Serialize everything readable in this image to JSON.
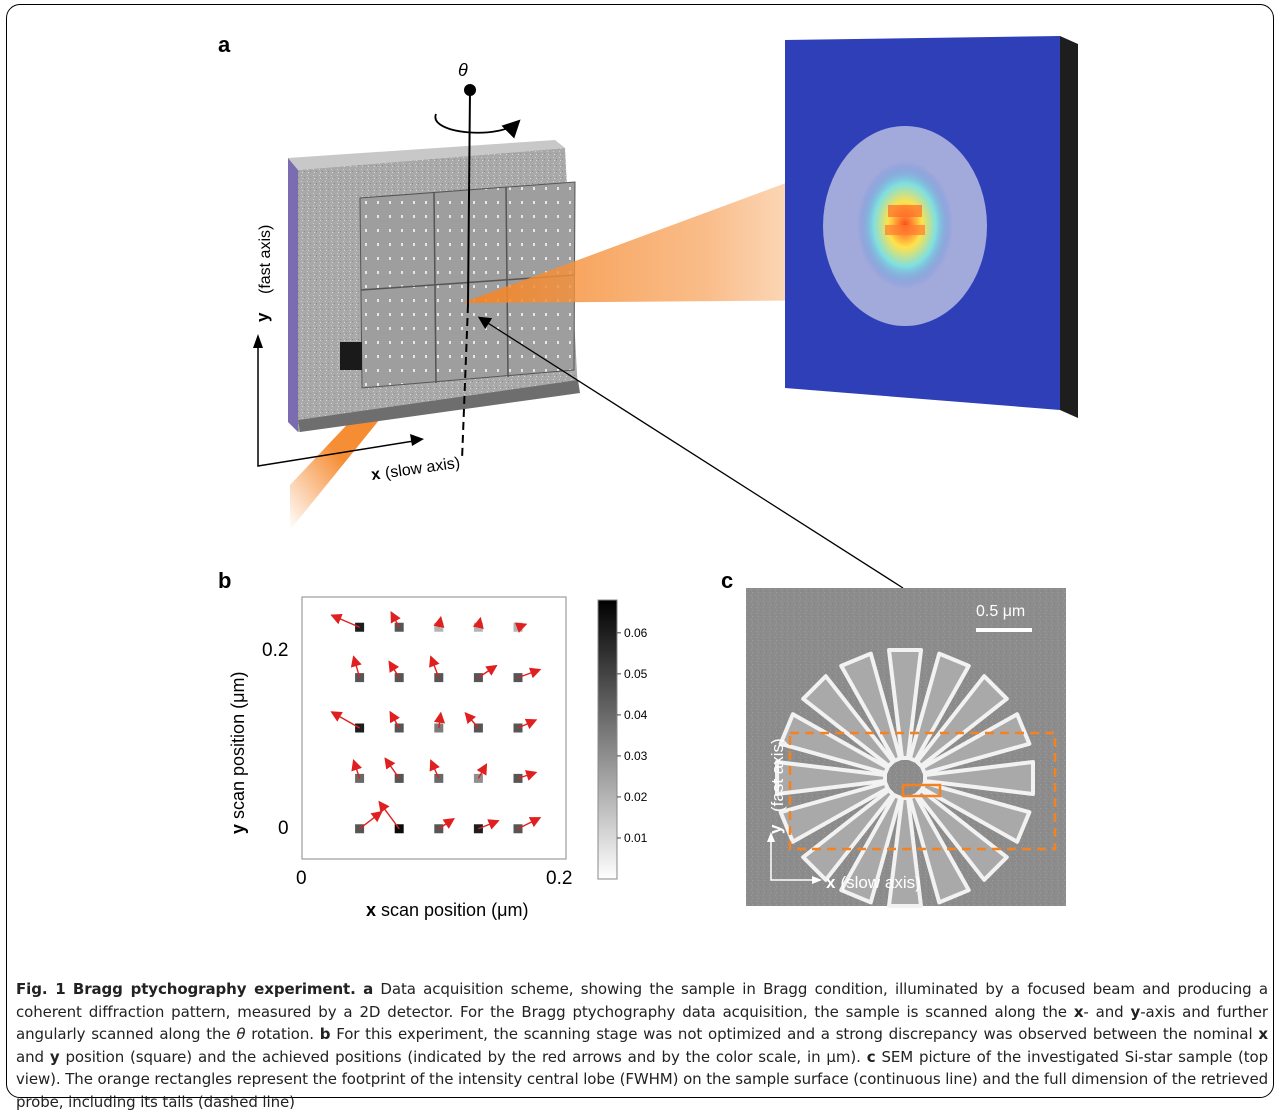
{
  "panels": {
    "a": {
      "label": "a",
      "theta": "θ",
      "y_axis_bold": "y",
      "y_axis_text": "(fast axis)",
      "x_axis_bold": "x",
      "x_axis_text": "(slow axis)"
    },
    "b": {
      "label": "b",
      "xlabel_bold": "x",
      "xlabel_text": "scan position (μm)",
      "ylabel_bold": "y",
      "ylabel_text": "scan position (μm)",
      "xtick_0": "0",
      "xtick_1": "0.2",
      "ytick_0": "0",
      "ytick_1": "0.2"
    },
    "c": {
      "label": "c",
      "scalebar": "0.5 μm",
      "y_axis_bold": "y",
      "y_axis_text": "(fast axis)",
      "x_axis_bold": "x",
      "x_axis_text": "(slow axis)"
    }
  },
  "chart_data": {
    "type": "scatter",
    "xlabel": "x scan position (μm)",
    "ylabel": "y scan position (μm)",
    "xlim": [
      0,
      0.2
    ],
    "ylim": [
      -0.03,
      0.23
    ],
    "xticks": [
      0,
      0.2
    ],
    "yticks": [
      0,
      0.2
    ],
    "colorbar": {
      "ticks": [
        0.01,
        0.02,
        0.03,
        0.04,
        0.05,
        0.06
      ],
      "range": [
        0,
        0.068
      ],
      "colormap": "white-to-black"
    },
    "nominal_positions_x": [
      0.04,
      0.08,
      0.12,
      0.16,
      0.2
    ],
    "nominal_positions_y": [
      0,
      0.05,
      0.1,
      0.15,
      0.2
    ],
    "points": [
      {
        "x": 0.04,
        "y": 0.2,
        "c": 0.06,
        "dx": -0.028,
        "dy": 0.012
      },
      {
        "x": 0.08,
        "y": 0.2,
        "c": 0.045,
        "dx": -0.008,
        "dy": 0.015
      },
      {
        "x": 0.12,
        "y": 0.2,
        "c": 0.02,
        "dx": 0.002,
        "dy": 0.01
      },
      {
        "x": 0.16,
        "y": 0.2,
        "c": 0.02,
        "dx": 0.002,
        "dy": 0.009
      },
      {
        "x": 0.2,
        "y": 0.2,
        "c": 0.02,
        "dx": 0.008,
        "dy": 0.003
      },
      {
        "x": 0.04,
        "y": 0.15,
        "c": 0.045,
        "dx": -0.006,
        "dy": 0.021
      },
      {
        "x": 0.08,
        "y": 0.15,
        "c": 0.045,
        "dx": -0.01,
        "dy": 0.016
      },
      {
        "x": 0.12,
        "y": 0.15,
        "c": 0.045,
        "dx": -0.008,
        "dy": 0.021
      },
      {
        "x": 0.16,
        "y": 0.15,
        "c": 0.045,
        "dx": 0.018,
        "dy": 0.012
      },
      {
        "x": 0.2,
        "y": 0.15,
        "c": 0.045,
        "dx": 0.022,
        "dy": 0.008
      },
      {
        "x": 0.04,
        "y": 0.1,
        "c": 0.06,
        "dx": -0.028,
        "dy": 0.016
      },
      {
        "x": 0.08,
        "y": 0.1,
        "c": 0.045,
        "dx": -0.009,
        "dy": 0.016
      },
      {
        "x": 0.12,
        "y": 0.1,
        "c": 0.035,
        "dx": 0.002,
        "dy": 0.015
      },
      {
        "x": 0.16,
        "y": 0.1,
        "c": 0.045,
        "dx": -0.013,
        "dy": 0.015
      },
      {
        "x": 0.2,
        "y": 0.1,
        "c": 0.045,
        "dx": 0.018,
        "dy": 0.008
      },
      {
        "x": 0.04,
        "y": 0.05,
        "c": 0.04,
        "dx": -0.006,
        "dy": 0.018
      },
      {
        "x": 0.08,
        "y": 0.05,
        "c": 0.045,
        "dx": -0.014,
        "dy": 0.02
      },
      {
        "x": 0.12,
        "y": 0.05,
        "c": 0.04,
        "dx": -0.008,
        "dy": 0.018
      },
      {
        "x": 0.16,
        "y": 0.05,
        "c": 0.03,
        "dx": 0.008,
        "dy": 0.014
      },
      {
        "x": 0.2,
        "y": 0.05,
        "c": 0.045,
        "dx": 0.018,
        "dy": 0.006
      },
      {
        "x": 0.04,
        "y": 0.0,
        "c": 0.045,
        "dx": 0.022,
        "dy": 0.017
      },
      {
        "x": 0.08,
        "y": 0.0,
        "c": 0.065,
        "dx": -0.02,
        "dy": 0.027
      },
      {
        "x": 0.12,
        "y": 0.0,
        "c": 0.045,
        "dx": 0.015,
        "dy": 0.01
      },
      {
        "x": 0.16,
        "y": 0.0,
        "c": 0.06,
        "dx": 0.02,
        "dy": 0.008
      },
      {
        "x": 0.2,
        "y": 0.0,
        "c": 0.045,
        "dx": 0.022,
        "dy": 0.011
      }
    ]
  },
  "caption": {
    "fig": "Fig. 1",
    "title": "Bragg ptychography experiment.",
    "a_label": "a",
    "a_text": "Data acquisition scheme, showing the sample in Bragg condition, illuminated by a focused beam and producing a coherent diffraction pattern, measured by a 2D detector. For the Bragg ptychography data acquisition, the sample is scanned along the",
    "x_bold": "x",
    "mid1": "- and",
    "y_bold": "y",
    "mid2": "-axis and further angularly scanned along the",
    "theta": "θ",
    "mid3": "rotation.",
    "b_label": "b",
    "b_text": "For this experiment, the scanning stage was not optimized and a strong discrepancy was observed between the nominal",
    "x_bold2": "x",
    "and": "and",
    "y_bold2": "y",
    "b_text2": "position (square) and the achieved positions (indicated by the red arrows and by the color scale, in μm).",
    "c_label": "c",
    "c_text": "SEM picture of the investigated Si-star sample (top view). The orange rectangles represent the footprint of the intensity central lobe (FWHM) on the sample surface (continuous line) and the full dimension of the retrieved probe, including its tails (dashed line)"
  }
}
